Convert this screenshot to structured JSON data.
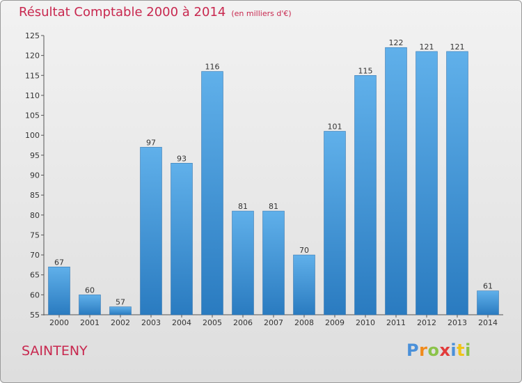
{
  "header": {
    "title": "Résultat Comptable 2000 à 2014",
    "subtitle": "(en milliers d'€)"
  },
  "footer": {
    "commune": "SAINTENY",
    "brand": "Proxiti"
  },
  "colors": {
    "title": "#c8284f",
    "bar_top": "#60b0ea",
    "bar_bottom": "#2a7bc0",
    "brand_letters": [
      "#4a90d9",
      "#f08a1c",
      "#8bc34a",
      "#e23b3b",
      "#4a90d9",
      "#f0c419",
      "#8bc34a"
    ]
  },
  "chart_data": {
    "type": "bar",
    "title": "Résultat Comptable 2000 à 2014",
    "subtitle": "(en milliers d'€)",
    "categories": [
      "2000",
      "2001",
      "2002",
      "2003",
      "2004",
      "2005",
      "2006",
      "2007",
      "2008",
      "2009",
      "2010",
      "2011",
      "2012",
      "2013",
      "2014"
    ],
    "values": [
      67,
      60,
      57,
      97,
      93,
      116,
      81,
      81,
      70,
      101,
      115,
      122,
      121,
      121,
      61
    ],
    "ylim": [
      55,
      125
    ],
    "yticks": [
      55,
      60,
      65,
      70,
      75,
      80,
      85,
      90,
      95,
      100,
      105,
      110,
      115,
      120,
      125
    ],
    "grid": false,
    "legend": "none"
  }
}
